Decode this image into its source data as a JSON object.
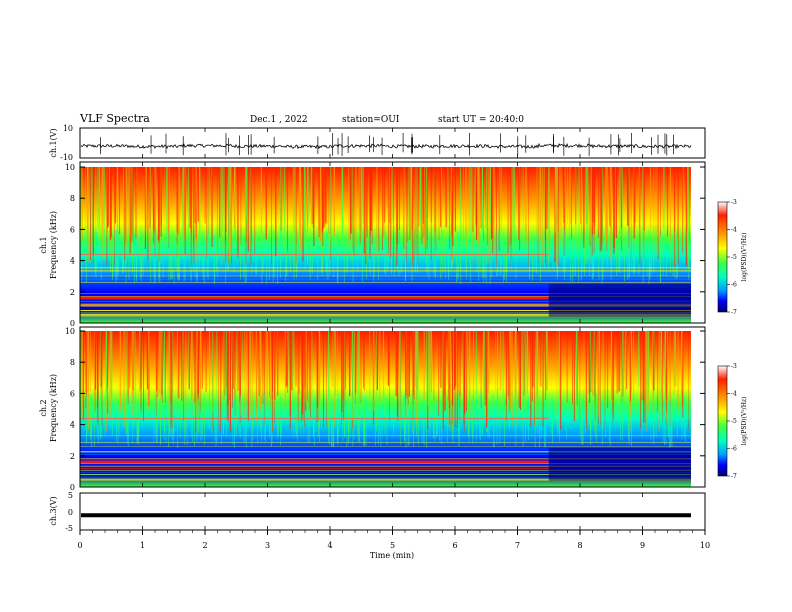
{
  "header": {
    "title": "VLF Spectra",
    "date": "Dec.1 , 2022",
    "station": "station=OUI",
    "start": "start UT = 20:40:0"
  },
  "chart_data": [
    {
      "type": "line",
      "ylabel": "ch.1(V)",
      "ylim": [
        -10,
        10
      ],
      "yticks": [
        "10",
        "-10"
      ],
      "series": [
        {
          "values": [
            -2,
            -2.3,
            -1.8,
            -2.1,
            -2.5,
            -1.9,
            -2.2,
            -2.0,
            -2.4,
            -1.7,
            -2.1,
            -2.3,
            -2.0
          ]
        }
      ]
    },
    {
      "type": "heatmap",
      "ylabel_top": "ch.1",
      "ylabel": "Frequency (kHz)",
      "ylim": [
        0,
        10
      ],
      "yticks": [
        "0",
        "2",
        "4",
        "6",
        "8",
        "10"
      ],
      "xlim": [
        0,
        10
      ],
      "colorbar": {
        "label": "log(PSD)(V²/Hz)",
        "range": [
          -7,
          -3
        ],
        "ticks": [
          "-3",
          "-4",
          "-5",
          "-6",
          "-7"
        ]
      }
    },
    {
      "type": "heatmap",
      "ylabel_top": "ch.2",
      "ylabel": "Frequency (kHz)",
      "ylim": [
        0,
        10
      ],
      "yticks": [
        "0",
        "2",
        "4",
        "6",
        "8",
        "10"
      ],
      "xlim": [
        0,
        10
      ],
      "colorbar": {
        "label": "log(PSD)(V²/Hz)",
        "range": [
          -7,
          -3
        ],
        "ticks": [
          "-3",
          "-4",
          "-5",
          "-6",
          "-7"
        ]
      }
    },
    {
      "type": "line",
      "ylabel": "ch.3(V)",
      "ylim": [
        -5,
        5
      ],
      "yticks": [
        "5",
        "0",
        "-5"
      ],
      "series": [
        {
          "values": [
            -1,
            -1,
            -1,
            -1,
            -1,
            -1,
            -1,
            -1,
            -1,
            -1,
            -1
          ]
        }
      ]
    }
  ],
  "xaxis": {
    "label": "Time (min)",
    "ticks": [
      "0",
      "1",
      "2",
      "3",
      "4",
      "5",
      "6",
      "7",
      "8",
      "9",
      "10"
    ]
  },
  "colors": {
    "spectrogram": [
      "#00006e",
      "#0000ff",
      "#00a0ff",
      "#00ffc0",
      "#40ff40",
      "#c8ff00",
      "#ffff00",
      "#ffa000",
      "#ff2000"
    ]
  }
}
